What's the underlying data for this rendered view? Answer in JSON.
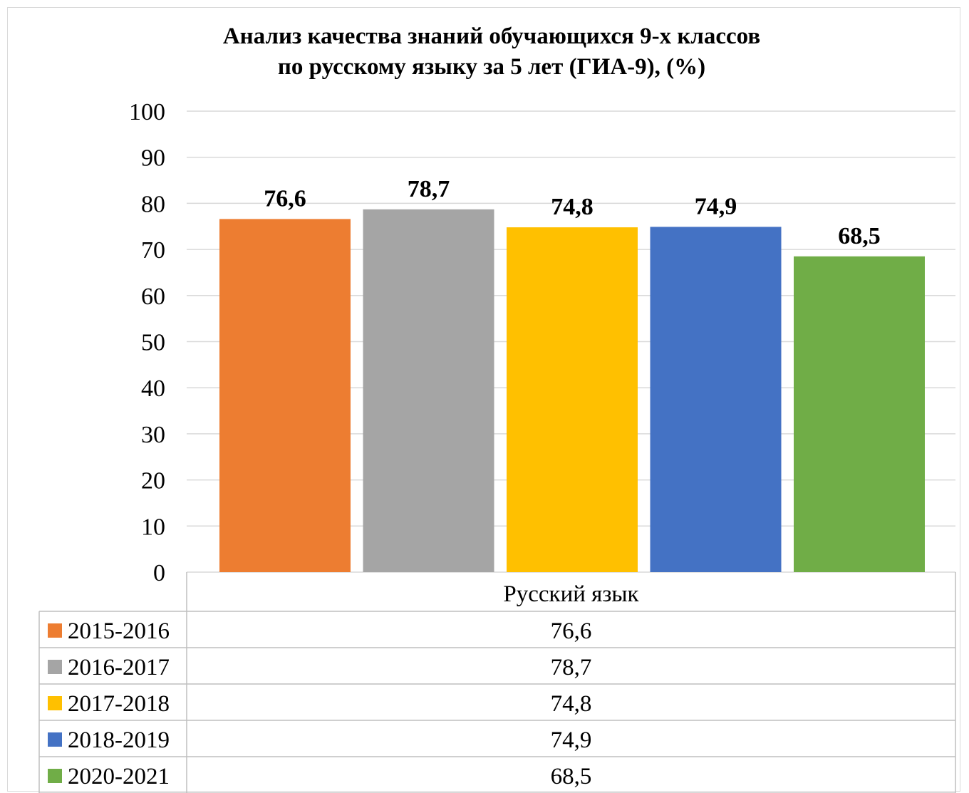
{
  "chart_data": {
    "type": "bar",
    "title_lines": [
      "Анализ качества знаний обучающихся 9-х классов",
      "по русскому языку за 5 лет (ГИА-9), (%)"
    ],
    "categories": [
      "Русский язык"
    ],
    "series": [
      {
        "name": "2015-2016",
        "values": [
          76.6
        ],
        "label": "76,6",
        "color": "#ED7D31"
      },
      {
        "name": "2016-2017",
        "values": [
          78.7
        ],
        "label": "78,7",
        "color": "#A5A5A5"
      },
      {
        "name": "2017-2018",
        "values": [
          74.8
        ],
        "label": "74,8",
        "color": "#FFC000"
      },
      {
        "name": "2018-2019",
        "values": [
          74.9
        ],
        "label": "74,9",
        "color": "#4472C4"
      },
      {
        "name": "2020-2021",
        "values": [
          68.5
        ],
        "label": "68,5",
        "color": "#70AD47"
      }
    ],
    "ylim": [
      0,
      100
    ],
    "yticks": [
      0,
      10,
      20,
      30,
      40,
      50,
      60,
      70,
      80,
      90,
      100
    ],
    "grid": true,
    "legend": "data-table"
  }
}
